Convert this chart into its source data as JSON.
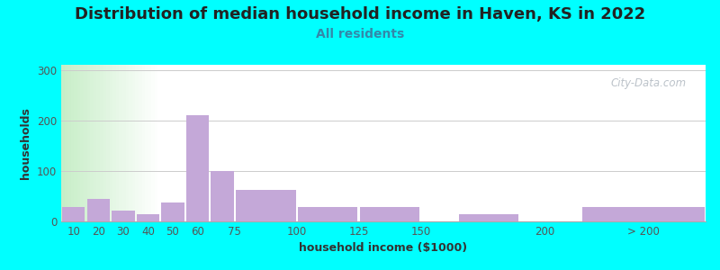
{
  "title": "Distribution of median household income in Haven, KS in 2022",
  "subtitle": "All residents",
  "xlabel": "household income ($1000)",
  "ylabel": "households",
  "background_color": "#00FFFF",
  "bar_color": "#c4a8d8",
  "title_fontsize": 13,
  "subtitle_fontsize": 10,
  "label_fontsize": 9,
  "tick_fontsize": 8.5,
  "watermark": "City-Data.com",
  "values": [
    28,
    45,
    22,
    15,
    38,
    210,
    100,
    63,
    28,
    28,
    15,
    28
  ],
  "bar_lefts": [
    5,
    15,
    25,
    35,
    45,
    55,
    65,
    75,
    100,
    125,
    165,
    215
  ],
  "bar_widths": [
    10,
    10,
    10,
    10,
    10,
    10,
    10,
    25,
    25,
    25,
    25,
    50
  ],
  "xlim": [
    5,
    265
  ],
  "ylim": [
    0,
    310
  ],
  "yticks": [
    0,
    100,
    200,
    300
  ],
  "xtick_positions": [
    10,
    20,
    30,
    40,
    50,
    60,
    75,
    100,
    125,
    150,
    200,
    240
  ],
  "xtick_labels": [
    "10",
    "20",
    "30",
    "40",
    "50",
    "60",
    "75",
    "100",
    "125",
    "150",
    "200",
    "> 200"
  ],
  "subtitle_color": "#3388aa",
  "title_color": "#222222"
}
